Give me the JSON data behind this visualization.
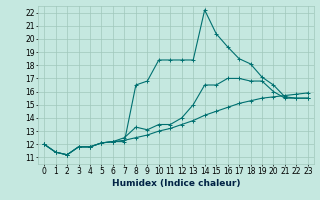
{
  "title": "",
  "xlabel": "Humidex (Indice chaleur)",
  "ylabel": "",
  "bg_color": "#c5e8e0",
  "grid_color": "#a0c8bb",
  "line_color": "#007070",
  "xlim": [
    -0.5,
    23.5
  ],
  "ylim": [
    10.5,
    22.5
  ],
  "xticks": [
    0,
    1,
    2,
    3,
    4,
    5,
    6,
    7,
    8,
    9,
    10,
    11,
    12,
    13,
    14,
    15,
    16,
    17,
    18,
    19,
    20,
    21,
    22,
    23
  ],
  "yticks": [
    11,
    12,
    13,
    14,
    15,
    16,
    17,
    18,
    19,
    20,
    21,
    22
  ],
  "series1_x": [
    0,
    1,
    2,
    3,
    4,
    5,
    6,
    7,
    8,
    9,
    10,
    11,
    12,
    13,
    14,
    15,
    16,
    17,
    18,
    19,
    20,
    21,
    22,
    23
  ],
  "series1_y": [
    12.0,
    11.4,
    11.2,
    11.8,
    11.8,
    12.1,
    12.2,
    12.2,
    16.5,
    16.8,
    18.4,
    18.4,
    18.4,
    18.4,
    22.2,
    20.4,
    19.4,
    18.5,
    18.1,
    17.1,
    16.5,
    15.6,
    15.5,
    15.5
  ],
  "series2_x": [
    0,
    1,
    2,
    3,
    4,
    5,
    6,
    7,
    8,
    9,
    10,
    11,
    12,
    13,
    14,
    15,
    16,
    17,
    18,
    19,
    20,
    21,
    22,
    23
  ],
  "series2_y": [
    12.0,
    11.4,
    11.2,
    11.8,
    11.8,
    12.1,
    12.2,
    12.5,
    13.3,
    13.1,
    13.5,
    13.5,
    14.0,
    15.0,
    16.5,
    16.5,
    17.0,
    17.0,
    16.8,
    16.8,
    16.0,
    15.5,
    15.5,
    15.5
  ],
  "series3_x": [
    0,
    1,
    2,
    3,
    4,
    5,
    6,
    7,
    8,
    9,
    10,
    11,
    12,
    13,
    14,
    15,
    16,
    17,
    18,
    19,
    20,
    21,
    22,
    23
  ],
  "series3_y": [
    12.0,
    11.4,
    11.2,
    11.8,
    11.8,
    12.1,
    12.2,
    12.3,
    12.5,
    12.7,
    13.0,
    13.2,
    13.5,
    13.8,
    14.2,
    14.5,
    14.8,
    15.1,
    15.3,
    15.5,
    15.6,
    15.7,
    15.8,
    15.9
  ],
  "marker": "+",
  "markersize": 3.5,
  "linewidth": 0.8,
  "tick_fontsize": 5.5,
  "label_fontsize": 6.5
}
